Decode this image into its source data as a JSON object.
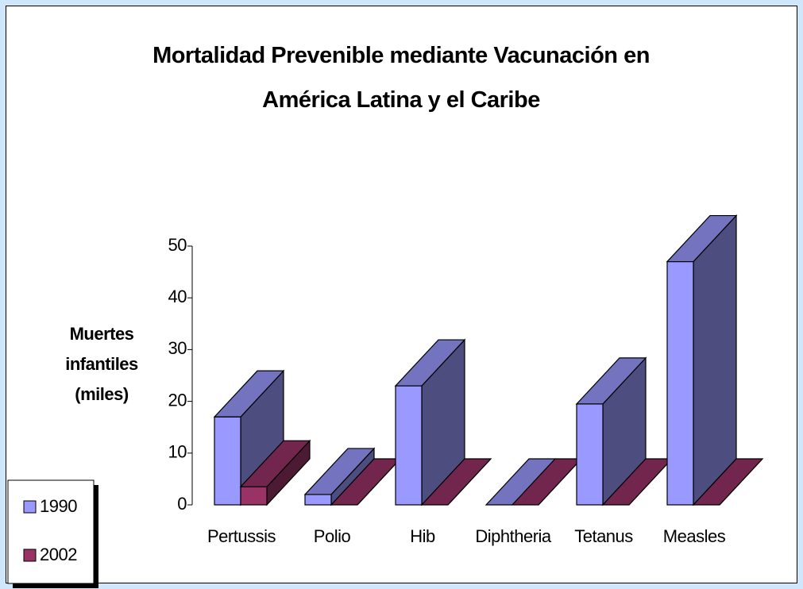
{
  "chart_data": {
    "type": "bar3d",
    "title": "Mortalidad Prevenible mediante Vacunación en América Latina y el Caribe",
    "ylabel": "Muertes infantiles (miles)",
    "categories": [
      "Pertussis",
      "Polio",
      "Hib",
      "Diphtheria",
      "Tetanus",
      "Measles"
    ],
    "series": [
      {
        "name": "1990",
        "color": "#9999ff",
        "values": [
          17,
          2,
          23,
          0,
          19.5,
          47
        ]
      },
      {
        "name": "2002",
        "color": "#993366",
        "values": [
          3.5,
          0,
          0,
          0,
          0,
          0
        ]
      }
    ],
    "ylim": [
      0,
      50
    ],
    "yticks": [
      0,
      10,
      20,
      30,
      40,
      50
    ]
  }
}
